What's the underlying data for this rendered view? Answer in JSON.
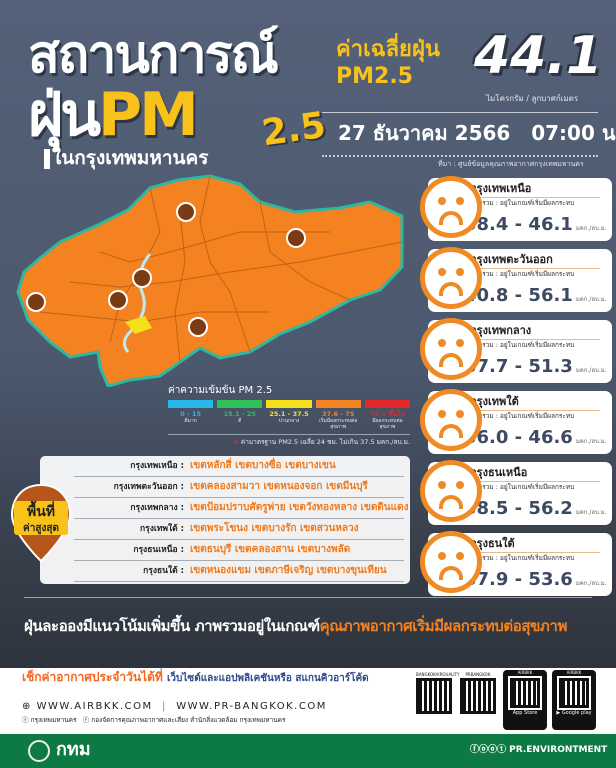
{
  "header": {
    "title_line1": "สถานการณ์",
    "title_word_dust": "ฝุ่น",
    "title_pm": "PM",
    "title_sub": "2.5",
    "title_line3": "ในกรุงเทพมหานคร"
  },
  "average": {
    "label_line1": "ค่าเฉลี่ยฝุ่น",
    "label_line2": "PM2.5",
    "value": "44.1",
    "unit": "ไมโครกรัม / ลูกบาศก์เมตร"
  },
  "datetime": {
    "date": "27 ธันวาคม 2566",
    "time": "07:00 น."
  },
  "source": "ที่มา : ศูนย์ข้อมูลคุณภาพอากาศกรุงเทพมหานคร",
  "legend": {
    "title": "ค่าความเข้มข้น PM 2.5",
    "levels": [
      {
        "range": "0 - 15",
        "label": "ดีมาก",
        "color": "#29b6e8"
      },
      {
        "range": "15.1 - 25",
        "label": "ดี",
        "color": "#2fc15a"
      },
      {
        "range": "25.1 - 37.5",
        "label": "ปานกลาง",
        "color": "#f6e01c"
      },
      {
        "range": "37.6 - 75",
        "label": "เริ่มมีผลกระทบต่อสุขภาพ",
        "color": "#f58220"
      },
      {
        "range": "75.1 ขึ้นไป",
        "label": "มีผลกระทบต่อสุขภาพ",
        "color": "#e3282a"
      }
    ],
    "note": "ค่ามาตรฐาน PM2.5 เฉลี่ย 24 ชม. ไม่เกิน 37.5 มคก./ลบ.ม."
  },
  "zones": [
    {
      "name": "กรุงเทพเหนือ",
      "status": "ภาพรวม : อยู่ในเกณฑ์เริ่มมีผลกระทบ",
      "range": "38.4 - 46.1",
      "unit": "มคก./ลบ.ม."
    },
    {
      "name": "กรุงเทพตะวันออก",
      "status": "ภาพรวม : อยู่ในเกณฑ์เริ่มมีผลกระทบ",
      "range": "40.8 - 56.1",
      "unit": "มคก./ลบ.ม."
    },
    {
      "name": "กรุงเทพกลาง",
      "status": "ภาพรวม : อยู่ในเกณฑ์เริ่มมีผลกระทบ",
      "range": "37.7 - 51.3",
      "unit": "มคก./ลบ.ม."
    },
    {
      "name": "กรุงเทพใต้",
      "status": "ภาพรวม : อยู่ในเกณฑ์เริ่มมีผลกระทบ",
      "range": "36.0 - 46.6",
      "unit": "มคก./ลบ.ม."
    },
    {
      "name": "กรุงธนเหนือ",
      "status": "ภาพรวม : อยู่ในเกณฑ์เริ่มมีผลกระทบ",
      "range": "38.5 - 56.2",
      "unit": "มคก./ลบ.ม."
    },
    {
      "name": "กรุงธนใต้",
      "status": "ภาพรวม : อยู่ในเกณฑ์เริ่มมีผลกระทบ",
      "range": "37.9 - 53.6",
      "unit": "มคก./ลบ.ม."
    }
  ],
  "highest": {
    "badge_line1": "พื้นที่",
    "badge_line2": "ค่าสูงสุด",
    "rows": [
      {
        "zone": "กรุงเทพเหนือ :",
        "districts": "เขตหลักสี่ เขตบางซื่อ เขตบางเขน"
      },
      {
        "zone": "กรุงเทพตะวันออก :",
        "districts": "เขตคลองสามวา เขตหนองจอก เขตมีนบุรี"
      },
      {
        "zone": "กรุงเทพกลาง :",
        "districts": "เขตป้อมปราบศัตรูพ่าย เขตวังทองหลาง เขตดินแดง"
      },
      {
        "zone": "กรุงเทพใต้ :",
        "districts": "เขตพระโขนง เขตบางรัก เขตสวนหลวง"
      },
      {
        "zone": "กรุงธนเหนือ :",
        "districts": "เขตธนบุรี เขตคลองสาน เขตบางพลัด"
      },
      {
        "zone": "กรุงธนใต้ :",
        "districts": "เขตหนองแขม เขตภาษีเจริญ เขตบางขุนเทียน"
      }
    ]
  },
  "summary": {
    "normal": "ฝุ่นละอองมีแนวโน้มเพิ่มขึ้น ภาพรวมอยู่ในเกณฑ์",
    "highlight": "คุณภาพอากาศเริ่มมีผลกระทบต่อสุขภาพ"
  },
  "footer": {
    "check_highlight": "เช็กค่าอากาศประจำวันได้ที่",
    "check_rest": "เว็บไซต์และแอปพลิเคชันหรือ สแกนคิวอาร์โค้ด",
    "url1": "WWW.AIRBKK.COM",
    "url2": "WWW.PR-BANGKOK.COM",
    "fb1": "กรุงเทพมหานคร",
    "fb2": "กองจัดการคุณภาพอากาศและเสียง สำนักสิ่งแวดล้อม กรุงเทพมหานคร",
    "qr1": "BANGKOKAIRQUALITY",
    "qr2": "PRBANGKOK",
    "app1_title": "AIRBKK",
    "app1_store": "App Store",
    "app2_title": "AIRBKK",
    "app2_store": "Google play",
    "org": "กทม",
    "social": "PR.ENVIRONTMENT"
  },
  "colors": {
    "background": "#4d5a70",
    "accent_yellow": "#f9c21a",
    "accent_orange": "#f58220",
    "footer_green": "#0d7a43"
  }
}
